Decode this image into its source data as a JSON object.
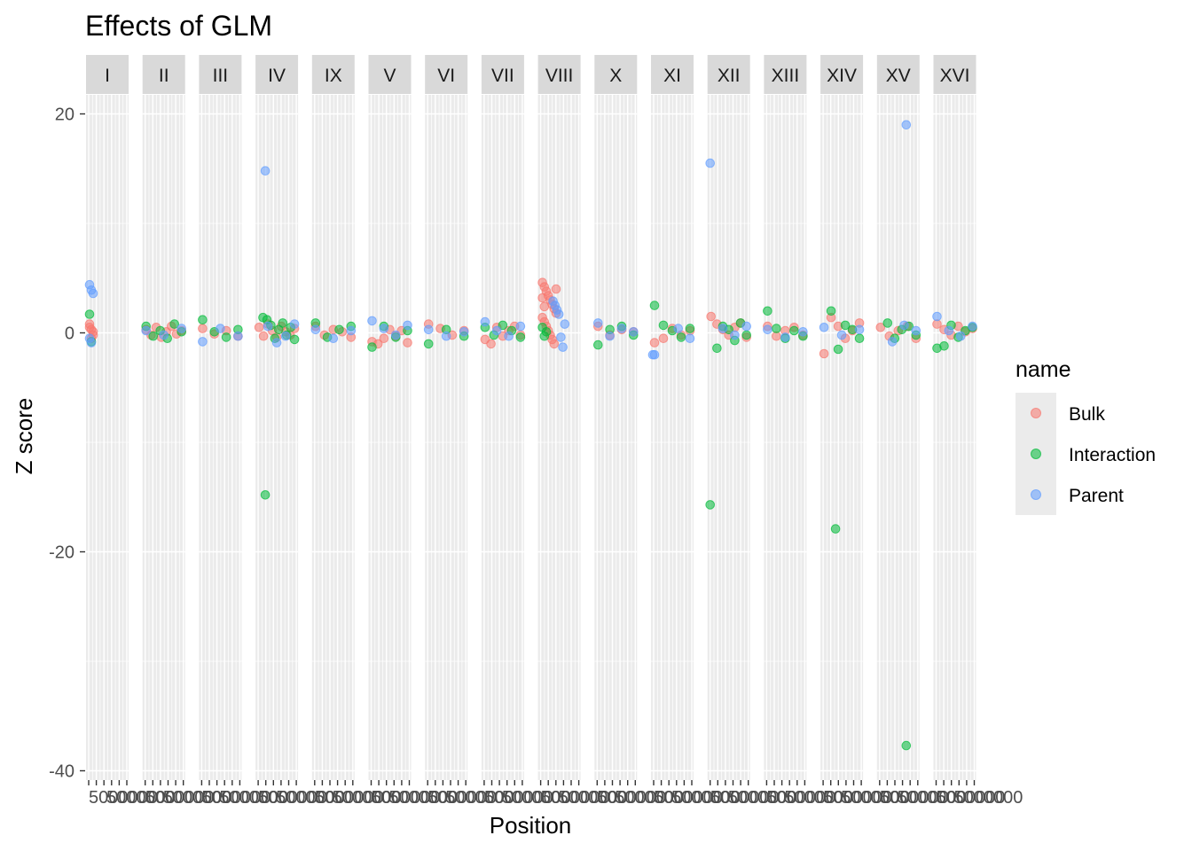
{
  "chart_data": {
    "type": "scatter",
    "title": "Effects of GLM",
    "xlabel": "Position",
    "ylabel": "Z score",
    "ylim": [
      -40,
      22
    ],
    "y_ticks": [
      -40,
      -20,
      0,
      20
    ],
    "x_tick_labels_text": "5000000",
    "grid": true,
    "legend": {
      "title": "name",
      "position": "right",
      "entries": [
        {
          "name": "Bulk",
          "color": "#F8766D"
        },
        {
          "name": "Interaction",
          "color": "#00BA38"
        },
        {
          "name": "Parent",
          "color": "#619CFF"
        }
      ]
    },
    "facets": [
      "I",
      "II",
      "III",
      "IV",
      "IX",
      "V",
      "VI",
      "VII",
      "VIII",
      "X",
      "XI",
      "XII",
      "XIII",
      "XIV",
      "XV",
      "XVI"
    ],
    "series": [
      {
        "name": "Bulk",
        "color": "#F8766D",
        "points": [
          {
            "facet": "I",
            "values": [
              0.8,
              0.3,
              -0.2,
              0.5,
              -0.5,
              0.1
            ]
          },
          {
            "facet": "II",
            "values": [
              0.3,
              -0.2,
              0.5,
              -0.4,
              0.1,
              0.6,
              -0.1,
              0.2
            ]
          },
          {
            "facet": "III",
            "values": [
              0.4,
              -0.1,
              0.2,
              -0.3
            ]
          },
          {
            "facet": "IV",
            "values": [
              0.5,
              -0.3,
              0.8,
              0.2,
              -0.4,
              0.6,
              0.1,
              -0.2,
              0.4
            ]
          },
          {
            "facet": "IX",
            "values": [
              0.6,
              -0.2,
              0.3,
              0.1,
              -0.4
            ]
          },
          {
            "facet": "V",
            "values": [
              -0.8,
              -1.0,
              -0.5,
              0.3,
              -0.3,
              0.2,
              -0.9
            ]
          },
          {
            "facet": "VI",
            "values": [
              0.8,
              0.4,
              -0.2,
              0.2
            ]
          },
          {
            "facet": "VII",
            "values": [
              -0.6,
              -1.0,
              0.5,
              -0.3,
              0.2,
              0.6,
              -0.2
            ]
          },
          {
            "facet": "VIII",
            "values": [
              4.6,
              4.2,
              3.8,
              3.4,
              3.0,
              2.6,
              2.2,
              1.8,
              1.4,
              1.0,
              0.6,
              0.2,
              -0.2,
              -0.6,
              -1.0,
              4.0,
              3.2,
              2.4
            ]
          },
          {
            "facet": "X",
            "values": [
              0.6,
              -0.2,
              0.3,
              0.1
            ]
          },
          {
            "facet": "XI",
            "values": [
              -0.9,
              -0.5,
              0.4,
              -0.2,
              0.2
            ]
          },
          {
            "facet": "XII",
            "values": [
              1.5,
              0.8,
              0.3,
              -0.2,
              0.5,
              0.9,
              -0.4
            ]
          },
          {
            "facet": "XIII",
            "values": [
              0.6,
              -0.3,
              0.2,
              0.5,
              -0.2
            ]
          },
          {
            "facet": "XIV",
            "values": [
              -1.9,
              1.4,
              0.6,
              -0.5,
              0.2,
              0.9
            ]
          },
          {
            "facet": "XV",
            "values": [
              0.5,
              -0.3,
              0.2,
              0.6,
              -0.5
            ]
          },
          {
            "facet": "XVI",
            "values": [
              0.8,
              0.3,
              -0.2,
              0.6,
              0.1,
              0.4
            ]
          }
        ]
      },
      {
        "name": "Interaction",
        "color": "#00BA38",
        "points": [
          {
            "facet": "I",
            "values": [
              1.7,
              -0.8
            ]
          },
          {
            "facet": "II",
            "values": [
              0.6,
              -0.3,
              0.2,
              -0.5,
              0.8,
              0.1
            ]
          },
          {
            "facet": "III",
            "values": [
              1.2,
              0.1,
              -0.4,
              0.3
            ]
          },
          {
            "facet": "IV",
            "values": [
              -14.8,
              1.4,
              1.2,
              0.7,
              -0.5,
              0.3,
              0.9,
              -0.2,
              0.5,
              -0.6
            ]
          },
          {
            "facet": "IX",
            "values": [
              0.9,
              -0.4,
              0.3,
              0.6
            ]
          },
          {
            "facet": "V",
            "values": [
              -1.3,
              0.6,
              -0.4,
              0.2
            ]
          },
          {
            "facet": "VI",
            "values": [
              -1.0,
              0.3,
              -0.3
            ]
          },
          {
            "facet": "VII",
            "values": [
              0.5,
              -0.2,
              0.7,
              0.2,
              -0.4
            ]
          },
          {
            "facet": "VIII",
            "values": [
              0.5,
              -0.3,
              0.1
            ]
          },
          {
            "facet": "X",
            "values": [
              -1.1,
              0.3,
              0.6,
              -0.2
            ]
          },
          {
            "facet": "XI",
            "values": [
              2.5,
              0.7,
              0.2,
              -0.4,
              0.4
            ]
          },
          {
            "facet": "XII",
            "values": [
              -15.7,
              -1.4,
              0.6,
              0.3,
              -0.7,
              0.9,
              -0.2
            ]
          },
          {
            "facet": "XIII",
            "values": [
              2.0,
              0.4,
              -0.5,
              0.2,
              -0.3
            ]
          },
          {
            "facet": "XIV",
            "values": [
              -17.9,
              2.0,
              -1.5,
              0.7,
              0.3,
              -0.5
            ]
          },
          {
            "facet": "XV",
            "values": [
              -37.7,
              0.9,
              -0.5,
              0.3,
              0.6,
              -0.2
            ]
          },
          {
            "facet": "XVI",
            "values": [
              -1.4,
              -1.2,
              0.7,
              -0.4,
              0.2,
              0.5
            ]
          }
        ]
      },
      {
        "name": "Parent",
        "color": "#619CFF",
        "points": [
          {
            "facet": "I",
            "values": [
              4.4,
              3.9,
              3.6,
              -0.5,
              -0.9
            ]
          },
          {
            "facet": "II",
            "values": [
              0.2,
              -0.2,
              0.4
            ]
          },
          {
            "facet": "III",
            "values": [
              -0.8,
              0.4,
              -0.3
            ]
          },
          {
            "facet": "IV",
            "values": [
              14.8,
              0.6,
              -0.9,
              -0.3,
              0.8
            ]
          },
          {
            "facet": "IX",
            "values": [
              0.3,
              -0.5,
              0.2
            ]
          },
          {
            "facet": "V",
            "values": [
              1.1,
              0.4,
              -0.2,
              0.7
            ]
          },
          {
            "facet": "VI",
            "values": [
              0.3,
              -0.3,
              0.1
            ]
          },
          {
            "facet": "VII",
            "values": [
              1.0,
              0.2,
              -0.3,
              0.6
            ]
          },
          {
            "facet": "VIII",
            "values": [
              2.9,
              2.5,
              2.1,
              1.7,
              -0.4,
              -1.3,
              0.8
            ]
          },
          {
            "facet": "X",
            "values": [
              0.9,
              -0.3,
              0.4,
              0.1
            ]
          },
          {
            "facet": "XI",
            "values": [
              -2.0,
              -2.0,
              0.4,
              -0.5
            ]
          },
          {
            "facet": "XII",
            "values": [
              15.5,
              0.4,
              -0.2,
              0.6
            ]
          },
          {
            "facet": "XIII",
            "values": [
              0.3,
              -0.4,
              0.1
            ]
          },
          {
            "facet": "XIV",
            "values": [
              0.5,
              -0.2,
              0.3
            ]
          },
          {
            "facet": "XV",
            "values": [
              19.0,
              -0.8,
              0.7,
              0.2
            ]
          },
          {
            "facet": "XVI",
            "values": [
              1.5,
              0.2,
              -0.3,
              0.6
            ]
          }
        ]
      }
    ]
  }
}
